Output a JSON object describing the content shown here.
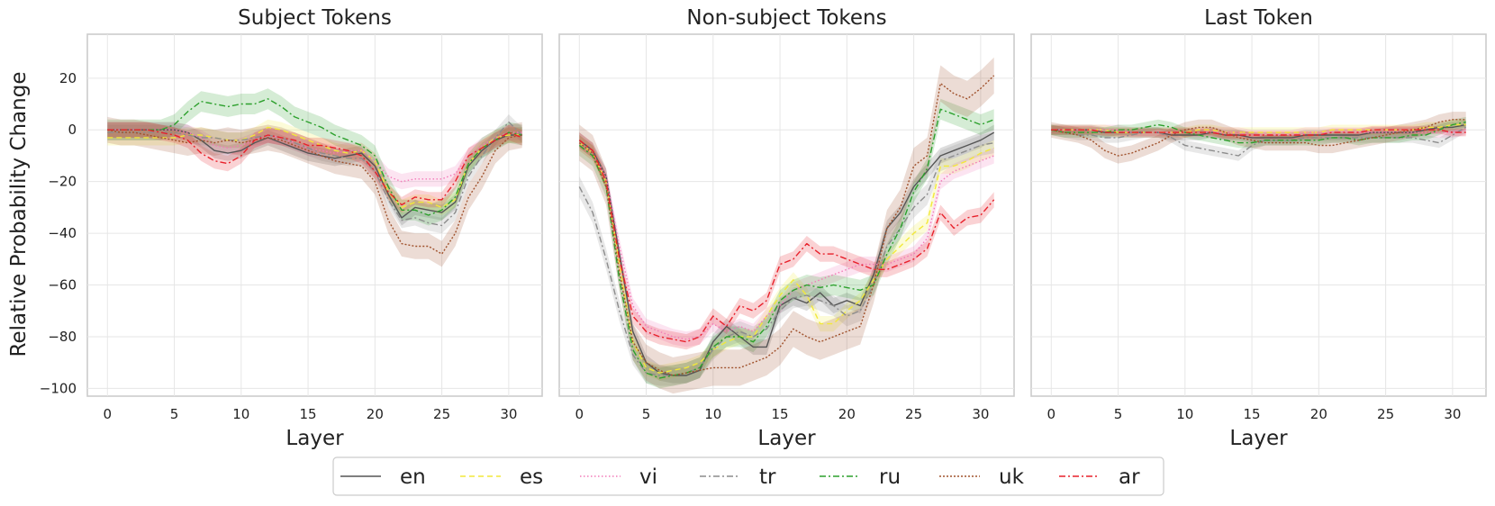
{
  "chart_data": {
    "type": "line",
    "ylabel": "Relative Probability Change",
    "xlabel": "Layer",
    "xlim": [
      -1.5,
      32.5
    ],
    "ylim": [
      -103,
      37
    ],
    "xticks": [
      0,
      5,
      10,
      15,
      20,
      25,
      30
    ],
    "yticks": [
      20,
      0,
      -20,
      -40,
      -60,
      -80,
      -100
    ],
    "ytick_labels": [
      "20",
      "0",
      "−20",
      "−40",
      "−60",
      "−80",
      "−100"
    ],
    "legend_position": "bottom-center",
    "series_styles": [
      {
        "name": "en",
        "color": "#555555",
        "dash": ""
      },
      {
        "name": "es",
        "color": "#f2e93a",
        "dash": "6,4"
      },
      {
        "name": "vi",
        "color": "#f27ab8",
        "dash": "1.5,2.5"
      },
      {
        "name": "tr",
        "color": "#8c8c8c",
        "dash": "7,3,2,3"
      },
      {
        "name": "ru",
        "color": "#2ca02c",
        "dash": "7,3,2,3"
      },
      {
        "name": "uk",
        "color": "#a0522d",
        "dash": "2,2"
      },
      {
        "name": "ar",
        "color": "#e8202a",
        "dash": "7,3,2,3"
      }
    ],
    "panels": [
      {
        "title": "Subject Tokens",
        "show_ylabel": true,
        "series": [
          {
            "name": "en",
            "values": [
              0,
              0,
              0,
              0,
              0,
              0,
              -1,
              -4,
              -8,
              -9,
              -8,
              -5,
              -3,
              -5,
              -7,
              -9,
              -10,
              -11,
              -10,
              -9,
              -14,
              -25,
              -34,
              -30,
              -31,
              -32,
              -28,
              -14,
              -8,
              -4,
              -2,
              -2
            ],
            "band": 3
          },
          {
            "name": "es",
            "values": [
              -3,
              -3,
              -3,
              -3,
              -3,
              -3,
              -2,
              -2,
              -3,
              -4,
              -4,
              -2,
              1,
              0,
              -2,
              -4,
              -6,
              -8,
              -9,
              -8,
              -12,
              -24,
              -30,
              -28,
              -28,
              -30,
              -27,
              -13,
              -7,
              -3,
              -2,
              -2
            ],
            "band": 3
          },
          {
            "name": "vi",
            "values": [
              0,
              0,
              0,
              0,
              0,
              0,
              -1,
              -3,
              -6,
              -7,
              -6,
              -4,
              -2,
              -3,
              -5,
              -7,
              -8,
              -9,
              -8,
              -8,
              -12,
              -18,
              -20,
              -19,
              -19,
              -19,
              -17,
              -10,
              -6,
              -3,
              -1,
              -1
            ],
            "band": 3
          },
          {
            "name": "tr",
            "values": [
              -1,
              -1,
              -1,
              -1,
              -1,
              -1,
              -2,
              -3,
              -3,
              -4,
              -4,
              -3,
              -2,
              -3,
              -5,
              -7,
              -9,
              -10,
              -11,
              -11,
              -16,
              -27,
              -35,
              -34,
              -36,
              -37,
              -32,
              -18,
              -10,
              -3,
              3,
              -2
            ],
            "band": 3
          },
          {
            "name": "ru",
            "values": [
              0,
              0,
              0,
              0,
              0,
              2,
              7,
              11,
              10,
              9,
              10,
              10,
              12,
              9,
              5,
              3,
              1,
              -2,
              -4,
              -6,
              -10,
              -22,
              -31,
              -31,
              -33,
              -31,
              -26,
              -13,
              -7,
              -4,
              -1,
              -2
            ],
            "band": 4
          },
          {
            "name": "uk",
            "values": [
              0,
              -1,
              -1,
              -2,
              -3,
              -4,
              -5,
              -4,
              -5,
              -4,
              -5,
              -4,
              -3,
              -4,
              -6,
              -8,
              -10,
              -12,
              -13,
              -14,
              -20,
              -35,
              -44,
              -45,
              -45,
              -48,
              -40,
              -26,
              -18,
              -8,
              -3,
              -2
            ],
            "band": 5
          },
          {
            "name": "ar",
            "values": [
              0,
              0,
              0,
              0,
              -1,
              -2,
              -4,
              -9,
              -12,
              -13,
              -10,
              -4,
              -2,
              -3,
              -4,
              -6,
              -6,
              -7,
              -8,
              -10,
              -16,
              -24,
              -29,
              -26,
              -27,
              -27,
              -20,
              -10,
              -7,
              -4,
              -1,
              -3
            ],
            "band": 3
          }
        ]
      },
      {
        "title": "Non-subject Tokens",
        "show_ylabel": false,
        "series": [
          {
            "name": "en",
            "values": [
              -4,
              -8,
              -18,
              -48,
              -78,
              -90,
              -94,
              -95,
              -95,
              -93,
              -82,
              -76,
              -80,
              -84,
              -84,
              -68,
              -65,
              -67,
              -63,
              -68,
              -66,
              -68,
              -56,
              -38,
              -32,
              -22,
              -16,
              -10,
              -8,
              -6,
              -4,
              -1
            ],
            "band": 3
          },
          {
            "name": "es",
            "values": [
              -5,
              -9,
              -20,
              -52,
              -82,
              -92,
              -94,
              -93,
              -92,
              -90,
              -85,
              -82,
              -80,
              -80,
              -72,
              -64,
              -58,
              -64,
              -75,
              -75,
              -70,
              -66,
              -58,
              -50,
              -45,
              -40,
              -36,
              -14,
              -14,
              -12,
              -9,
              -7
            ],
            "band": 3
          },
          {
            "name": "vi",
            "values": [
              -5,
              -9,
              -18,
              -45,
              -68,
              -76,
              -78,
              -80,
              -81,
              -80,
              -75,
              -78,
              -76,
              -78,
              -72,
              -68,
              -62,
              -60,
              -58,
              -56,
              -54,
              -52,
              -52,
              -52,
              -50,
              -48,
              -42,
              -20,
              -16,
              -14,
              -12,
              -10
            ],
            "band": 3
          },
          {
            "name": "tr",
            "values": [
              -22,
              -32,
              -50,
              -70,
              -87,
              -94,
              -95,
              -95,
              -94,
              -92,
              -85,
              -80,
              -78,
              -80,
              -77,
              -70,
              -65,
              -64,
              -66,
              -68,
              -72,
              -70,
              -60,
              -45,
              -38,
              -30,
              -25,
              -12,
              -10,
              -8,
              -6,
              -5
            ],
            "band": 4
          },
          {
            "name": "ru",
            "values": [
              -6,
              -10,
              -22,
              -58,
              -85,
              -94,
              -96,
              -95,
              -94,
              -92,
              -84,
              -80,
              -80,
              -82,
              -76,
              -66,
              -62,
              -60,
              -61,
              -60,
              -61,
              -62,
              -60,
              -48,
              -38,
              -24,
              -15,
              8,
              6,
              4,
              2,
              4
            ],
            "band": 4
          },
          {
            "name": "uk",
            "values": [
              -5,
              -9,
              -22,
              -55,
              -82,
              -90,
              -93,
              -95,
              -94,
              -93,
              -92,
              -92,
              -92,
              -90,
              -88,
              -84,
              -77,
              -80,
              -82,
              -80,
              -78,
              -76,
              -60,
              -38,
              -30,
              -14,
              -10,
              18,
              14,
              12,
              16,
              21
            ],
            "band": 7
          },
          {
            "name": "ar",
            "values": [
              -4,
              -8,
              -20,
              -50,
              -72,
              -78,
              -80,
              -81,
              -82,
              -80,
              -72,
              -76,
              -68,
              -70,
              -66,
              -52,
              -50,
              -44,
              -48,
              -48,
              -50,
              -52,
              -54,
              -54,
              -52,
              -50,
              -46,
              -32,
              -38,
              -34,
              -33,
              -27
            ],
            "band": 3
          }
        ]
      },
      {
        "title": "Last Token",
        "show_ylabel": false,
        "series": [
          {
            "name": "en",
            "values": [
              0,
              0,
              0,
              0,
              -1,
              -1,
              -1,
              -1,
              -1,
              -2,
              -2,
              -2,
              -1,
              -2,
              -2,
              -3,
              -3,
              -3,
              -3,
              -2,
              -2,
              -2,
              -2,
              -2,
              -1,
              -1,
              -1,
              -1,
              0,
              1,
              1,
              2
            ],
            "band": 2
          },
          {
            "name": "es",
            "values": [
              0,
              0,
              0,
              0,
              0,
              -1,
              -1,
              -1,
              -1,
              -1,
              -1,
              0,
              0,
              -1,
              -1,
              -1,
              -1,
              -1,
              -1,
              -1,
              -1,
              0,
              0,
              0,
              0,
              0,
              0,
              0,
              1,
              1,
              2,
              2
            ],
            "band": 2
          },
          {
            "name": "vi",
            "values": [
              0,
              0,
              0,
              0,
              0,
              0,
              -1,
              -1,
              -1,
              -1,
              -1,
              -1,
              -1,
              -1,
              -1,
              -2,
              -2,
              -2,
              -2,
              -1,
              -1,
              -1,
              -1,
              -1,
              -1,
              -1,
              -1,
              -1,
              -1,
              -1,
              -1,
              0
            ],
            "band": 2
          },
          {
            "name": "tr",
            "values": [
              0,
              -1,
              -2,
              -2,
              -3,
              -3,
              -2,
              -1,
              -1,
              -3,
              -6,
              -7,
              -8,
              -9,
              -10,
              -6,
              -4,
              -4,
              -4,
              -3,
              -3,
              -3,
              -3,
              -3,
              -3,
              -3,
              -3,
              -3,
              -4,
              -5,
              -2,
              1
            ],
            "band": 2
          },
          {
            "name": "ru",
            "values": [
              0,
              -1,
              -1,
              -1,
              -1,
              0,
              0,
              1,
              2,
              1,
              -1,
              -2,
              -3,
              -4,
              -5,
              -5,
              -4,
              -4,
              -4,
              -4,
              -4,
              -3,
              -3,
              -4,
              -3,
              -3,
              -3,
              -2,
              -2,
              0,
              2,
              3
            ],
            "band": 2
          },
          {
            "name": "uk",
            "values": [
              0,
              -1,
              -2,
              -4,
              -8,
              -10,
              -9,
              -7,
              -5,
              -2,
              0,
              1,
              1,
              -1,
              -3,
              -4,
              -5,
              -5,
              -5,
              -5,
              -6,
              -6,
              -5,
              -4,
              -3,
              -2,
              -1,
              0,
              1,
              3,
              4,
              4
            ],
            "band": 3
          },
          {
            "name": "ar",
            "values": [
              0,
              0,
              0,
              0,
              -1,
              -1,
              -1,
              -1,
              -1,
              -1,
              -1,
              -1,
              -1,
              -2,
              -2,
              -2,
              -2,
              -2,
              -2,
              -2,
              -2,
              -1,
              -1,
              -1,
              0,
              0,
              0,
              0,
              0,
              0,
              -1,
              -1
            ],
            "band": 1.5
          }
        ]
      }
    ]
  }
}
